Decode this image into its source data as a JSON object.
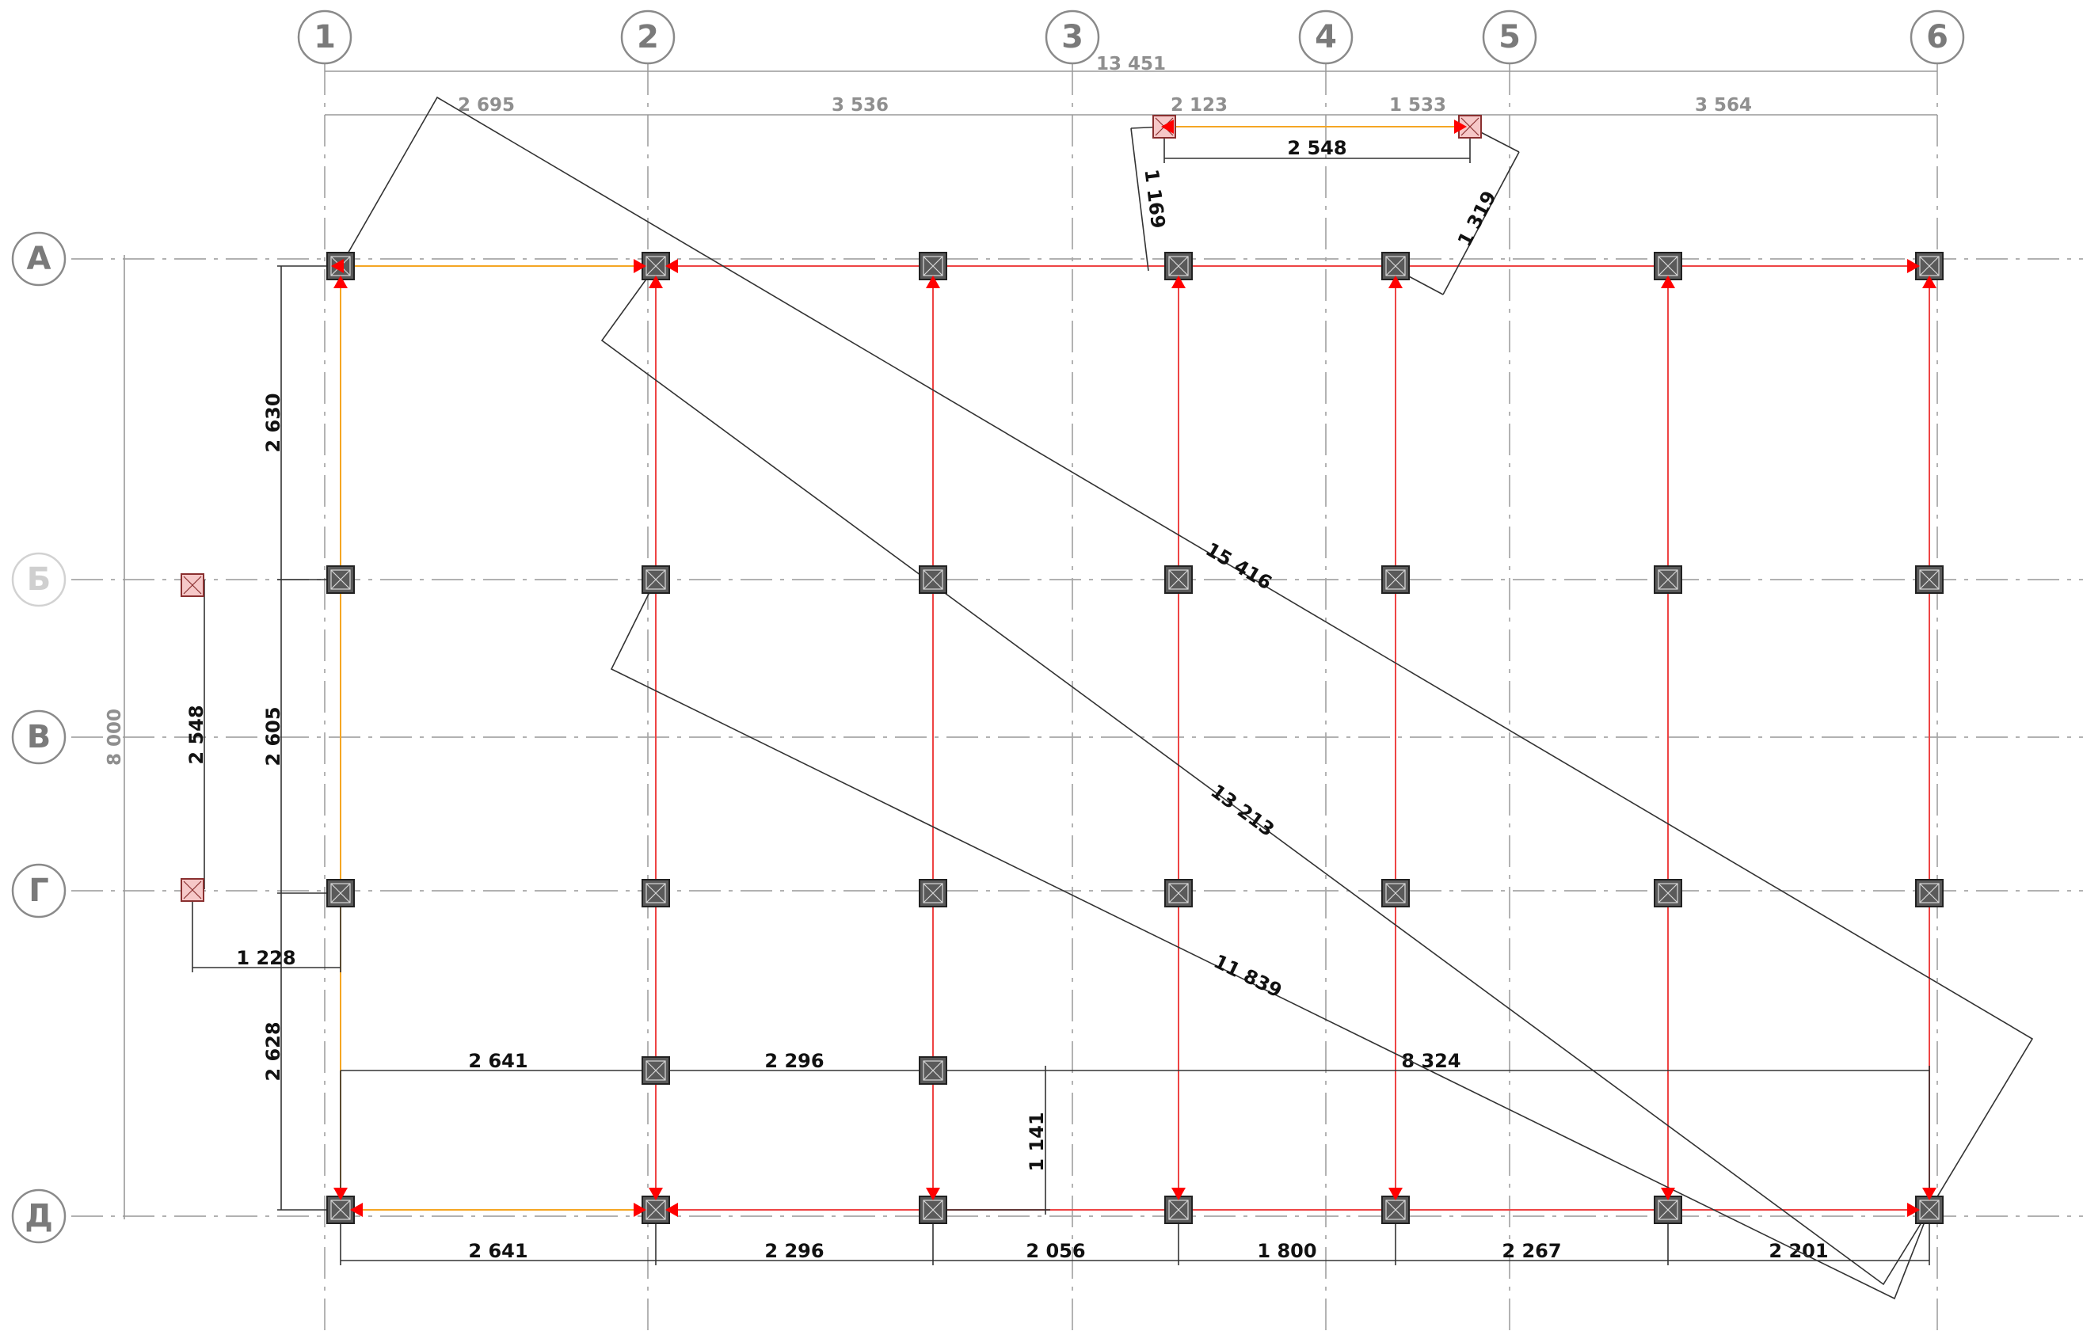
{
  "axes": {
    "columns": [
      "1",
      "2",
      "3",
      "4",
      "5",
      "6"
    ],
    "rows": [
      "А",
      "Б",
      "В",
      "Г",
      "Д"
    ]
  },
  "dimensions": {
    "overall_width": "13 451",
    "overall_height": "8 000",
    "axis_spacing": [
      "2 695",
      "3 536",
      "2 123",
      "1 533",
      "3 564"
    ],
    "left_vertical": [
      "2 630",
      "2 605",
      "2 628"
    ],
    "bottom_chain": [
      "2 641",
      "2 296",
      "2 056",
      "1 800",
      "2 267",
      "2 201"
    ],
    "inner_chain": [
      "2 641",
      "2 296"
    ],
    "inner_long": "8 324",
    "inner_offset": "1 141",
    "top_beam": "2 548",
    "top_left_diag": "1 169",
    "top_right_diag": "1 319",
    "left_beam": "2 548",
    "left_offset": "1 228",
    "diagonals": [
      "15 416",
      "13 213",
      "11 839"
    ]
  },
  "colors": {
    "grid": "#a6a6a6",
    "column": "#5a5a5a",
    "beam_red": "#ee4444",
    "beam_orange": "#f5a623",
    "arrow": "#ff0000",
    "pink_column": "#f6c8c8"
  }
}
